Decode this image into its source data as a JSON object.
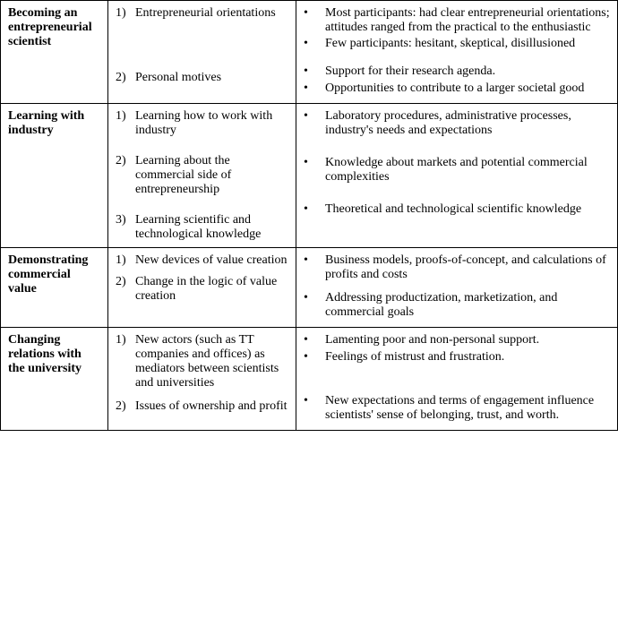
{
  "table": {
    "rows": [
      {
        "theme": "Becoming an entrepreneurial scientist",
        "subs": [
          {
            "n": "1)",
            "text": "Entrepreneurial orientations"
          },
          {
            "n": "2)",
            "text": "Personal motives"
          }
        ],
        "subSpacerAfter": [
          0
        ],
        "subSpacerHeight": 56,
        "bulletGroups": [
          [
            "Most participants: had clear entrepreneurial orientations; attitudes ranged from the practical to the enthusiastic",
            "Few participants: hesitant, skeptical, disillusioned"
          ],
          [
            "Support for their research agenda.",
            "Opportunities to contribute to a larger societal good"
          ]
        ]
      },
      {
        "theme": "Learning with industry",
        "subs": [
          {
            "n": "1)",
            "text": "Learning how to work with industry"
          },
          {
            "n": "2)",
            "text": "Learning about the commercial side of entrepreneurship"
          },
          {
            "n": "3)",
            "text": "Learning scientific and technological knowledge"
          }
        ],
        "subSpacerAfter": [
          0,
          1
        ],
        "subSpacerHeight": 18,
        "bulletGroups": [
          [
            "Laboratory procedures, administrative processes, industry's needs and expectations"
          ],
          [
            "Knowledge about markets and potential commercial complexities"
          ],
          [
            "Theoretical and technological scientific knowledge"
          ]
        ],
        "bulletGroupSpacer": 18
      },
      {
        "theme": "Demonstrating commercial value",
        "subs": [
          {
            "n": "1)",
            "text": "New devices of value creation"
          },
          {
            "n": "2)",
            "text": "Change in the logic of value creation"
          }
        ],
        "subSpacerAfter": [
          0
        ],
        "subSpacerHeight": 8,
        "bulletGroups": [
          [
            "Business models, proofs-of-concept, and calculations of profits and costs"
          ],
          [
            "Addressing productization, marketization, and commercial goals"
          ]
        ],
        "bulletGroupSpacer": 8
      },
      {
        "theme": "Changing relations with the university",
        "subs": [
          {
            "n": "1)",
            "text": "New actors (such as TT companies and offices) as mediators between scientists and universities"
          },
          {
            "n": "2)",
            "text": "Issues of ownership and profit"
          }
        ],
        "subSpacerAfter": [
          0
        ],
        "subSpacerHeight": 10,
        "bulletGroups": [
          [
            "Lamenting poor and non-personal support.",
            "Feelings of mistrust and frustration."
          ],
          [
            "New expectations and terms of engagement influence scientists' sense of belonging, trust, and worth."
          ]
        ],
        "bulletGroupSpacer": 30
      }
    ]
  },
  "style": {
    "fontFamily": "Times New Roman",
    "fontSizePt": 11,
    "borderColor": "#000000",
    "backgroundColor": "#ffffff",
    "textColor": "#000000",
    "bulletGlyph": "•",
    "colWidths": {
      "theme": 120,
      "subs": 210
    }
  }
}
